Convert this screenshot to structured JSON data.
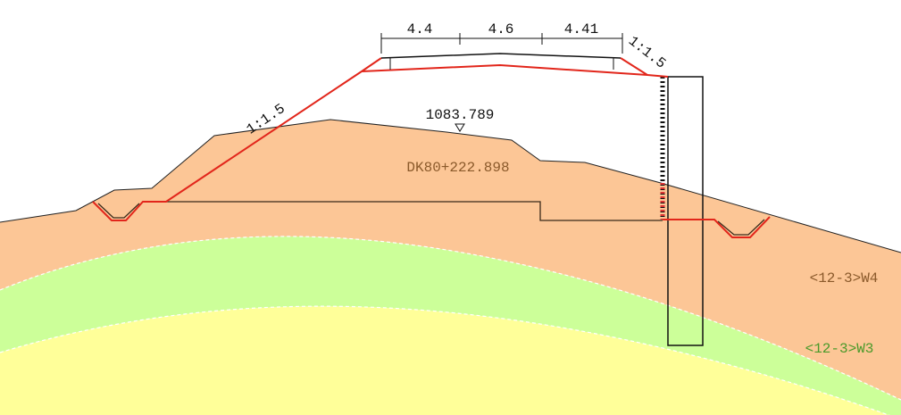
{
  "dimensions": [
    "4.4",
    "4.6",
    "4.41"
  ],
  "slopes": [
    "1:1.5",
    "1:1.5"
  ],
  "elevation": "1083.789",
  "station": "DK80+222.898",
  "layers": [
    "<12-3>W4",
    "<12-3>W3"
  ]
}
